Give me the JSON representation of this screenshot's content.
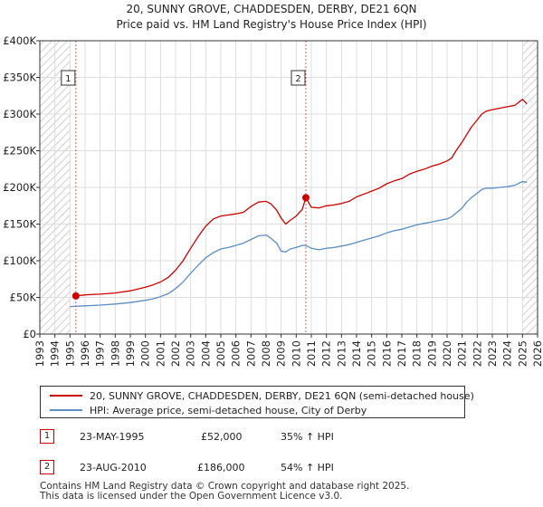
{
  "chart_data": {
    "type": "line",
    "title": "20, SUNNY GROVE, CHADDESDEN, DERBY, DE21 6QN",
    "subtitle": "Price paid vs. HM Land Registry's House Price Index (HPI)",
    "xlim": [
      1993,
      2026
    ],
    "ylim": [
      0,
      400000
    ],
    "x_ticks": [
      1993,
      1994,
      1995,
      1996,
      1997,
      1998,
      1999,
      2000,
      2001,
      2002,
      2003,
      2004,
      2005,
      2006,
      2007,
      2008,
      2009,
      2010,
      2011,
      2012,
      2013,
      2014,
      2015,
      2016,
      2017,
      2018,
      2019,
      2020,
      2021,
      2022,
      2023,
      2024,
      2025,
      2026
    ],
    "y_ticks": [
      {
        "value": 0,
        "label": "£0"
      },
      {
        "value": 50000,
        "label": "£50K"
      },
      {
        "value": 100000,
        "label": "£100K"
      },
      {
        "value": 150000,
        "label": "£150K"
      },
      {
        "value": 200000,
        "label": "£200K"
      },
      {
        "value": 250000,
        "label": "£250K"
      },
      {
        "value": 300000,
        "label": "£300K"
      },
      {
        "value": 350000,
        "label": "£350K"
      },
      {
        "value": 400000,
        "label": "£400K"
      }
    ],
    "hatch_before": 1995.0,
    "hatch_after": 2025.0,
    "series": [
      {
        "name": "20, SUNNY GROVE, CHADDESDEN, DERBY, DE21 6QN (semi-detached house)",
        "color": "#cc0000",
        "x": [
          1995.39,
          1996,
          1997,
          1998,
          1999,
          2000,
          2000.5,
          2001,
          2001.5,
          2002,
          2002.5,
          2003,
          2003.5,
          2004,
          2004.5,
          2005,
          2005.5,
          2006,
          2006.5,
          2007,
          2007.5,
          2008,
          2008.3,
          2008.7,
          2009,
          2009.3,
          2009.6,
          2010,
          2010.4,
          2010.64,
          2011,
          2011.5,
          2012,
          2012.5,
          2013,
          2013.5,
          2014,
          2014.5,
          2015,
          2015.5,
          2016,
          2016.5,
          2017,
          2017.5,
          2018,
          2018.5,
          2019,
          2019.5,
          2020,
          2020.3,
          2020.6,
          2021,
          2021.3,
          2021.6,
          2022,
          2022.3,
          2022.6,
          2023,
          2023.5,
          2024,
          2024.5,
          2025,
          2025.3
        ],
        "y": [
          52000,
          53500,
          54500,
          56000,
          59000,
          64000,
          67000,
          71000,
          77000,
          87000,
          100000,
          117000,
          133000,
          147000,
          157000,
          161000,
          162500,
          164000,
          166000,
          174000,
          180000,
          181000,
          178000,
          169000,
          158000,
          150000,
          155000,
          161000,
          170000,
          186000,
          173000,
          172000,
          175000,
          176000,
          178000,
          181000,
          187000,
          191000,
          195000,
          199000,
          205000,
          209000,
          212000,
          218000,
          222000,
          225000,
          229000,
          232000,
          236000,
          240000,
          250000,
          262000,
          272000,
          282000,
          292000,
          300000,
          304000,
          306000,
          308000,
          310000,
          312000,
          320000,
          314000
        ]
      },
      {
        "name": "HPI: Average price, semi-detached house, City of Derby",
        "color": "#5b8ec6",
        "x": [
          1995,
          1996,
          1997,
          1998,
          1999,
          2000,
          2000.5,
          2001,
          2001.5,
          2002,
          2002.5,
          2003,
          2003.5,
          2004,
          2004.5,
          2005,
          2005.5,
          2006,
          2006.5,
          2007,
          2007.5,
          2008,
          2008.3,
          2008.7,
          2009,
          2009.3,
          2009.6,
          2010,
          2010.4,
          2010.64,
          2011,
          2011.5,
          2012,
          2012.5,
          2013,
          2013.5,
          2014,
          2014.5,
          2015,
          2015.5,
          2016,
          2016.5,
          2017,
          2017.5,
          2018,
          2018.5,
          2019,
          2019.5,
          2020,
          2020.3,
          2020.6,
          2021,
          2021.3,
          2021.6,
          2022,
          2022.3,
          2022.6,
          2023,
          2023.5,
          2024,
          2024.5,
          2025,
          2025.3
        ],
        "y": [
          37500,
          38500,
          39500,
          41000,
          43000,
          46000,
          48000,
          51000,
          55000,
          62000,
          71000,
          83000,
          94000,
          104000,
          111000,
          116000,
          118000,
          121000,
          124000,
          129000,
          134000,
          135000,
          131000,
          124000,
          113000,
          112000,
          116000,
          118000,
          121000,
          120800,
          117000,
          115000,
          117000,
          118000,
          120000,
          122000,
          125000,
          128000,
          131000,
          134000,
          138000,
          141000,
          143000,
          146000,
          149000,
          151000,
          153000,
          155000,
          157000,
          160000,
          165000,
          172000,
          180000,
          186000,
          192000,
          197000,
          199000,
          199000,
          200000,
          201000,
          203000,
          208000,
          207000
        ]
      }
    ],
    "annotations": [
      {
        "id": "1",
        "x": 1995.39,
        "y": 52000
      },
      {
        "id": "2",
        "x": 2010.64,
        "y": 186000
      }
    ]
  },
  "legend": {
    "property_label": "20, SUNNY GROVE, CHADDESDEN, DERBY, DE21 6QN (semi-detached house)",
    "hpi_label": "HPI: Average price, semi-detached house, City of Derby"
  },
  "transactions": [
    {
      "id": "1",
      "date": "23-MAY-1995",
      "price": "£52,000",
      "hpi_change": "35% ↑ HPI"
    },
    {
      "id": "2",
      "date": "23-AUG-2010",
      "price": "£186,000",
      "hpi_change": "54% ↑ HPI"
    }
  ],
  "footer": {
    "line1": "Contains HM Land Registry data © Crown copyright and database right 2025.",
    "line2": "This data is licensed under the Open Government Licence v3.0."
  },
  "colors": {
    "property": "#cc0000",
    "hpi": "#5b8ec6",
    "grid": "#dddddd",
    "badge_border": "#cc0000"
  }
}
